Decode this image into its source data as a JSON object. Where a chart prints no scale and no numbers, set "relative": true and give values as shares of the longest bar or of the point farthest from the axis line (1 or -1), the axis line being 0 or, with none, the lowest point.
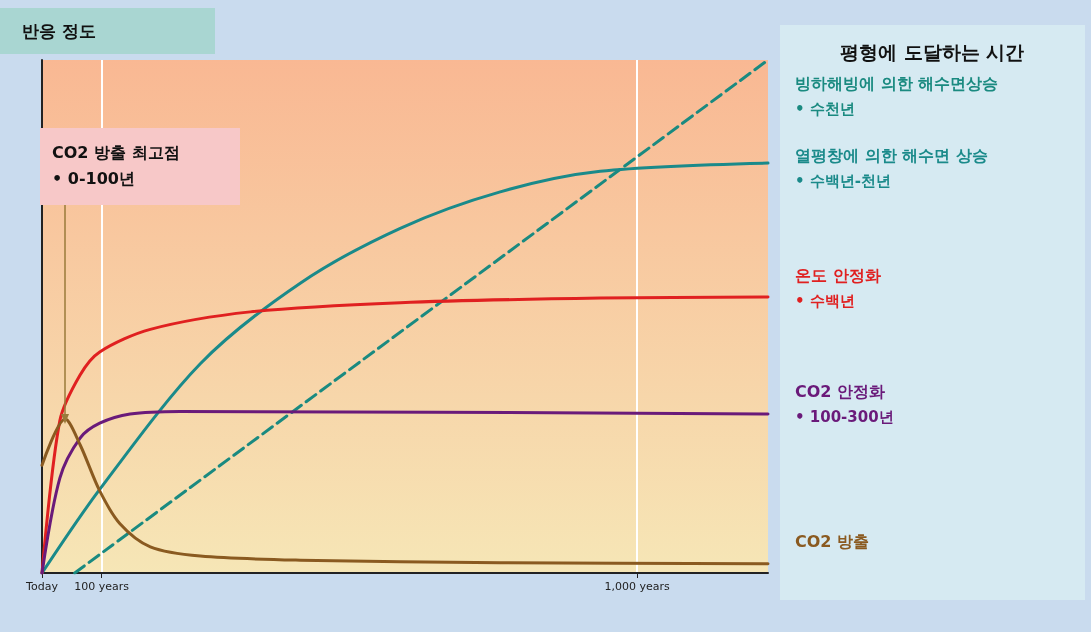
{
  "chart_data": {
    "type": "line",
    "relative": true,
    "ylabel": "반응 정도",
    "legend_title": "평형에 도달하는 시간",
    "legend": "right",
    "grid": "x",
    "marker": "none",
    "xlim": [
      0,
      1220
    ],
    "xticks": [
      {
        "value": 0,
        "label": "Today"
      },
      {
        "value": 100,
        "label": "100 years"
      },
      {
        "value": 1000,
        "label": "1,000 years"
      }
    ],
    "series": [
      {
        "name": "빙하해빙에 의한 해수면상승",
        "color": "#1a8a80",
        "line_style": "dashed",
        "x": [
          55,
          1220
        ],
        "values": [
          0,
          1
        ]
      },
      {
        "name": "열평창에 의한 해수면 상승",
        "color": "#1a8a8a",
        "x": [
          0,
          97,
          266,
          434,
          602,
          770,
          938,
          1220
        ],
        "values": [
          0,
          0.163,
          0.408,
          0.565,
          0.672,
          0.743,
          0.783,
          0.799
        ]
      },
      {
        "name": "온도 안정화",
        "color": "#e02020",
        "x": [
          0,
          30,
          64,
          97,
          182,
          350,
          602,
          938,
          1220
        ],
        "values": [
          0,
          0.297,
          0.386,
          0.431,
          0.475,
          0.509,
          0.527,
          0.536,
          0.538
        ]
      },
      {
        "name": "CO2 안정화",
        "color": "#6a1a7a",
        "x": [
          0,
          30,
          64,
          97,
          148,
          232,
          1220
        ],
        "values": [
          0,
          0.185,
          0.263,
          0.292,
          0.31,
          0.315,
          0.31
        ]
      },
      {
        "name": "CO2 방출",
        "color": "#8a5a20",
        "x": [
          0,
          39,
          64,
          97,
          131,
          182,
          266,
          434,
          770,
          1220
        ],
        "values": [
          0.21,
          0.3,
          0.25,
          0.16,
          0.096,
          0.051,
          0.033,
          0.025,
          0.02,
          0.018
        ]
      }
    ],
    "annotations": [
      "CO2 방출 최고점\n• 0-100년",
      "• 수천년",
      "• 수백년-천년",
      "• 수백년",
      "• 100-300년"
    ]
  }
}
